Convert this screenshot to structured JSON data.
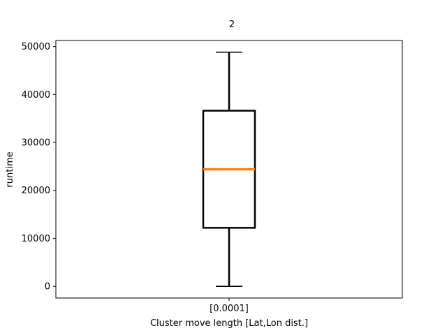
{
  "chart_data": {
    "type": "boxplot",
    "title": "2",
    "xlabel": "Cluster move length [Lat,Lon dist.]",
    "ylabel": "runtime",
    "categories": [
      "[0.0001]"
    ],
    "boxes": [
      {
        "category": "[0.0001]",
        "whisker_low": 0,
        "q1": 12200,
        "median": 24400,
        "q3": 36600,
        "whisker_high": 48800
      }
    ],
    "ylim": [
      -2440,
      51240
    ],
    "yticks": [
      0,
      10000,
      20000,
      30000,
      40000,
      50000
    ],
    "ytick_labels": [
      "0",
      "10000",
      "20000",
      "30000",
      "40000",
      "50000"
    ],
    "grid": false,
    "colors": {
      "box": "#000000",
      "median": "#ff7f0e",
      "whisker": "#000000"
    }
  }
}
